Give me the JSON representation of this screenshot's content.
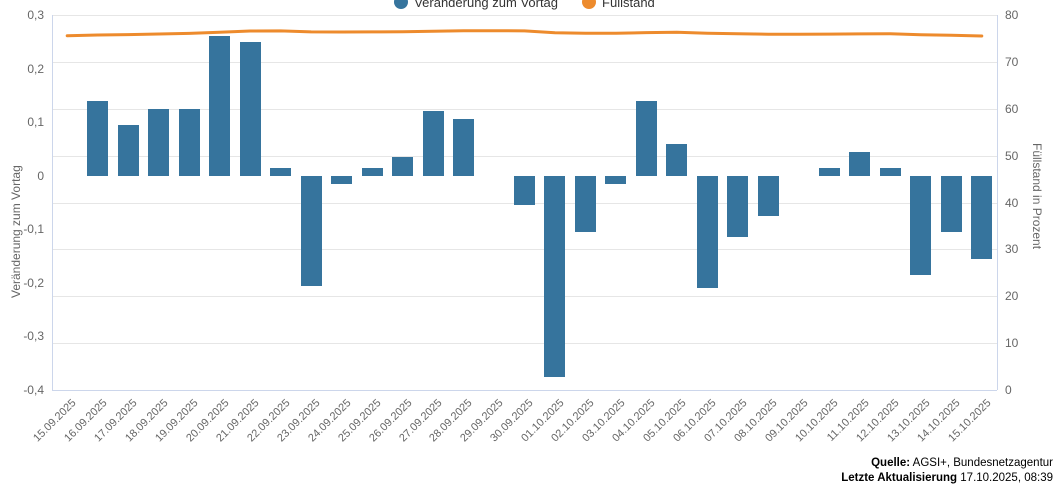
{
  "legend": {
    "items": [
      {
        "label": "Veränderung zum Vortag",
        "color": "#36749D"
      },
      {
        "label": "Füllstand",
        "color": "#ED8B2D"
      }
    ]
  },
  "chart_data": {
    "type": "bar+line",
    "categories": [
      "15.09.2025",
      "16.09.2025",
      "17.09.2025",
      "18.09.2025",
      "19.09.2025",
      "20.09.2025",
      "21.09.2025",
      "22.09.2025",
      "23.09.2025",
      "24.09.2025",
      "25.09.2025",
      "26.09.2025",
      "27.09.2025",
      "28.09.2025",
      "29.09.2025",
      "30.09.2025",
      "01.10.2025",
      "02.10.2025",
      "03.10.2025",
      "04.10.2025",
      "05.10.2025",
      "06.10.2025",
      "07.10.2025",
      "08.10.2025",
      "09.10.2025",
      "10.10.2025",
      "11.10.2025",
      "12.10.2025",
      "13.10.2025",
      "14.10.2025",
      "15.10.2025"
    ],
    "series": [
      {
        "name": "Veränderung zum Vortag",
        "type": "bar",
        "y_axis": "left",
        "color": "#36749D",
        "values": [
          0,
          0.14,
          0.095,
          0.125,
          0.125,
          0.26,
          0.25,
          0.015,
          -0.205,
          -0.015,
          0.015,
          0.035,
          0.12,
          0.105,
          0,
          -0.055,
          -0.375,
          -0.105,
          -0.015,
          0.14,
          0.06,
          -0.21,
          -0.115,
          -0.075,
          0,
          0.015,
          0.045,
          0.015,
          -0.185,
          -0.105,
          -0.155
        ]
      },
      {
        "name": "Füllstand",
        "type": "line",
        "y_axis": "right",
        "color": "#ED8B2D",
        "values": [
          75.59,
          75.73,
          75.82,
          75.95,
          76.07,
          76.33,
          76.58,
          76.6,
          76.39,
          76.38,
          76.39,
          76.43,
          76.55,
          76.65,
          76.65,
          76.6,
          76.22,
          76.12,
          76.1,
          76.24,
          76.3,
          76.09,
          75.98,
          75.9,
          75.9,
          75.92,
          75.96,
          75.98,
          75.79,
          75.69,
          75.53
        ]
      }
    ],
    "left_axis": {
      "title": "Veränderung zum Vortag",
      "min": -0.4,
      "max": 0.3,
      "tick_step": 0.1,
      "tick_labels": [
        "0,3",
        "0,2",
        "0,1",
        "0",
        "-0,1",
        "-0,2",
        "-0,3",
        "-0,4"
      ]
    },
    "right_axis": {
      "title": "Füllstand in Prozent",
      "min": 0,
      "max": 80,
      "tick_step": 10,
      "tick_labels": [
        "80",
        "70",
        "60",
        "50",
        "40",
        "30",
        "20",
        "10",
        "0"
      ]
    },
    "grid": {
      "horizontal": true,
      "aligned_to": "right_axis"
    },
    "legend_position": "top-center"
  },
  "footer": {
    "source_label": "Quelle:",
    "source_text": " AGSI+, Bundesnetzagentur",
    "updated_label": "Letzte Aktualisierung",
    "updated_text": " 17.10.2025, 08:39"
  },
  "colors": {
    "bar": "#36749D",
    "line": "#ED8B2D",
    "grid": "#E6E6E6",
    "axis_line": "#CCD6EB",
    "tick_text": "#666666",
    "legend_text": "#333333"
  }
}
